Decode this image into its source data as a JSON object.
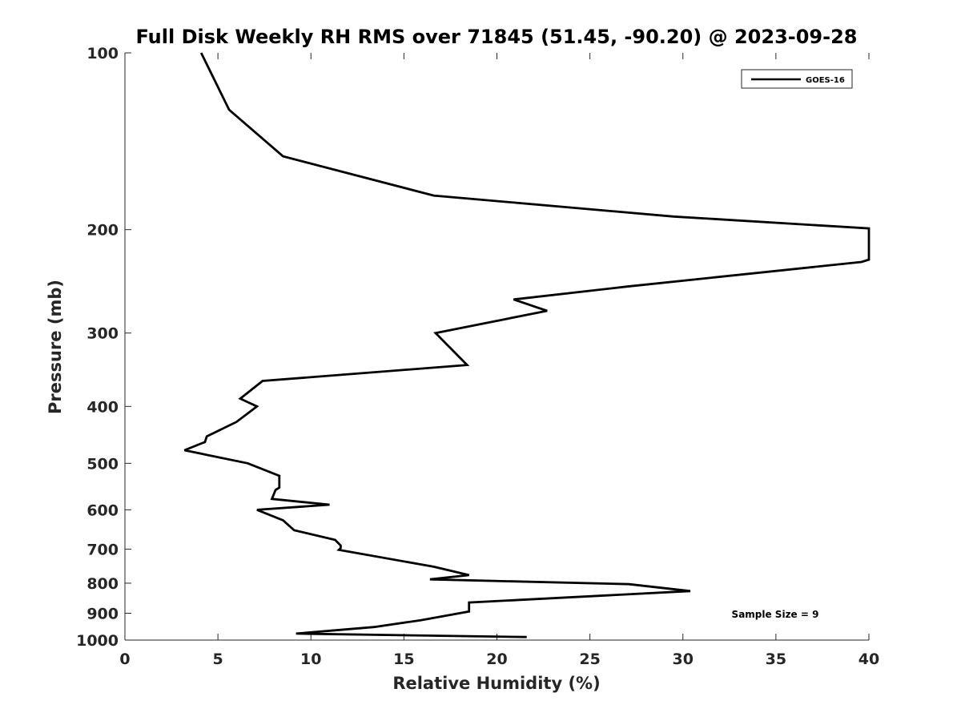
{
  "chart_data": {
    "type": "line",
    "title": "Full Disk Weekly RH RMS over 71845 (51.45, -90.20) @ 2023-09-28",
    "xlabel": "Relative Humidity (%)",
    "ylabel": "Pressure (mb)",
    "xlim": [
      0,
      40
    ],
    "ylim": [
      100,
      1000
    ],
    "y_scale": "log",
    "y_reversed": true,
    "x_ticks": [
      0,
      5,
      10,
      15,
      20,
      25,
      30,
      35,
      40
    ],
    "y_ticks": [
      100,
      200,
      300,
      400,
      500,
      600,
      700,
      800,
      900,
      1000
    ],
    "grid": false,
    "legend": {
      "placement": "top-right"
    },
    "annotation": "Sample Size = 9",
    "series": [
      {
        "name": "GOES-16",
        "color": "#000000",
        "points": [
          [
            4.1,
            100
          ],
          [
            5.6,
            125
          ],
          [
            8.5,
            150
          ],
          [
            16.6,
            175
          ],
          [
            29.5,
            190
          ],
          [
            40.0,
            199
          ],
          [
            40.0,
            225
          ],
          [
            39.6,
            227
          ],
          [
            27.0,
            250
          ],
          [
            20.9,
            263
          ],
          [
            22.7,
            275
          ],
          [
            16.7,
            300
          ],
          [
            18.4,
            340
          ],
          [
            7.4,
            362
          ],
          [
            6.2,
            388
          ],
          [
            7.1,
            400
          ],
          [
            6.0,
            425
          ],
          [
            4.4,
            450
          ],
          [
            4.3,
            460
          ],
          [
            3.2,
            475
          ],
          [
            6.6,
            500
          ],
          [
            8.3,
            525
          ],
          [
            8.3,
            550
          ],
          [
            8.1,
            555
          ],
          [
            7.9,
            575
          ],
          [
            11.0,
            588
          ],
          [
            7.1,
            600
          ],
          [
            8.5,
            625
          ],
          [
            9.1,
            650
          ],
          [
            11.3,
            675
          ],
          [
            11.6,
            690
          ],
          [
            11.6,
            697
          ],
          [
            11.5,
            702
          ],
          [
            16.6,
            750
          ],
          [
            18.5,
            775
          ],
          [
            16.4,
            788
          ],
          [
            27.1,
            803
          ],
          [
            30.4,
            825
          ],
          [
            18.5,
            863
          ],
          [
            18.5,
            894
          ],
          [
            15.9,
            925
          ],
          [
            13.4,
            950
          ],
          [
            9.2,
            975
          ],
          [
            21.6,
            988
          ]
        ]
      }
    ]
  }
}
